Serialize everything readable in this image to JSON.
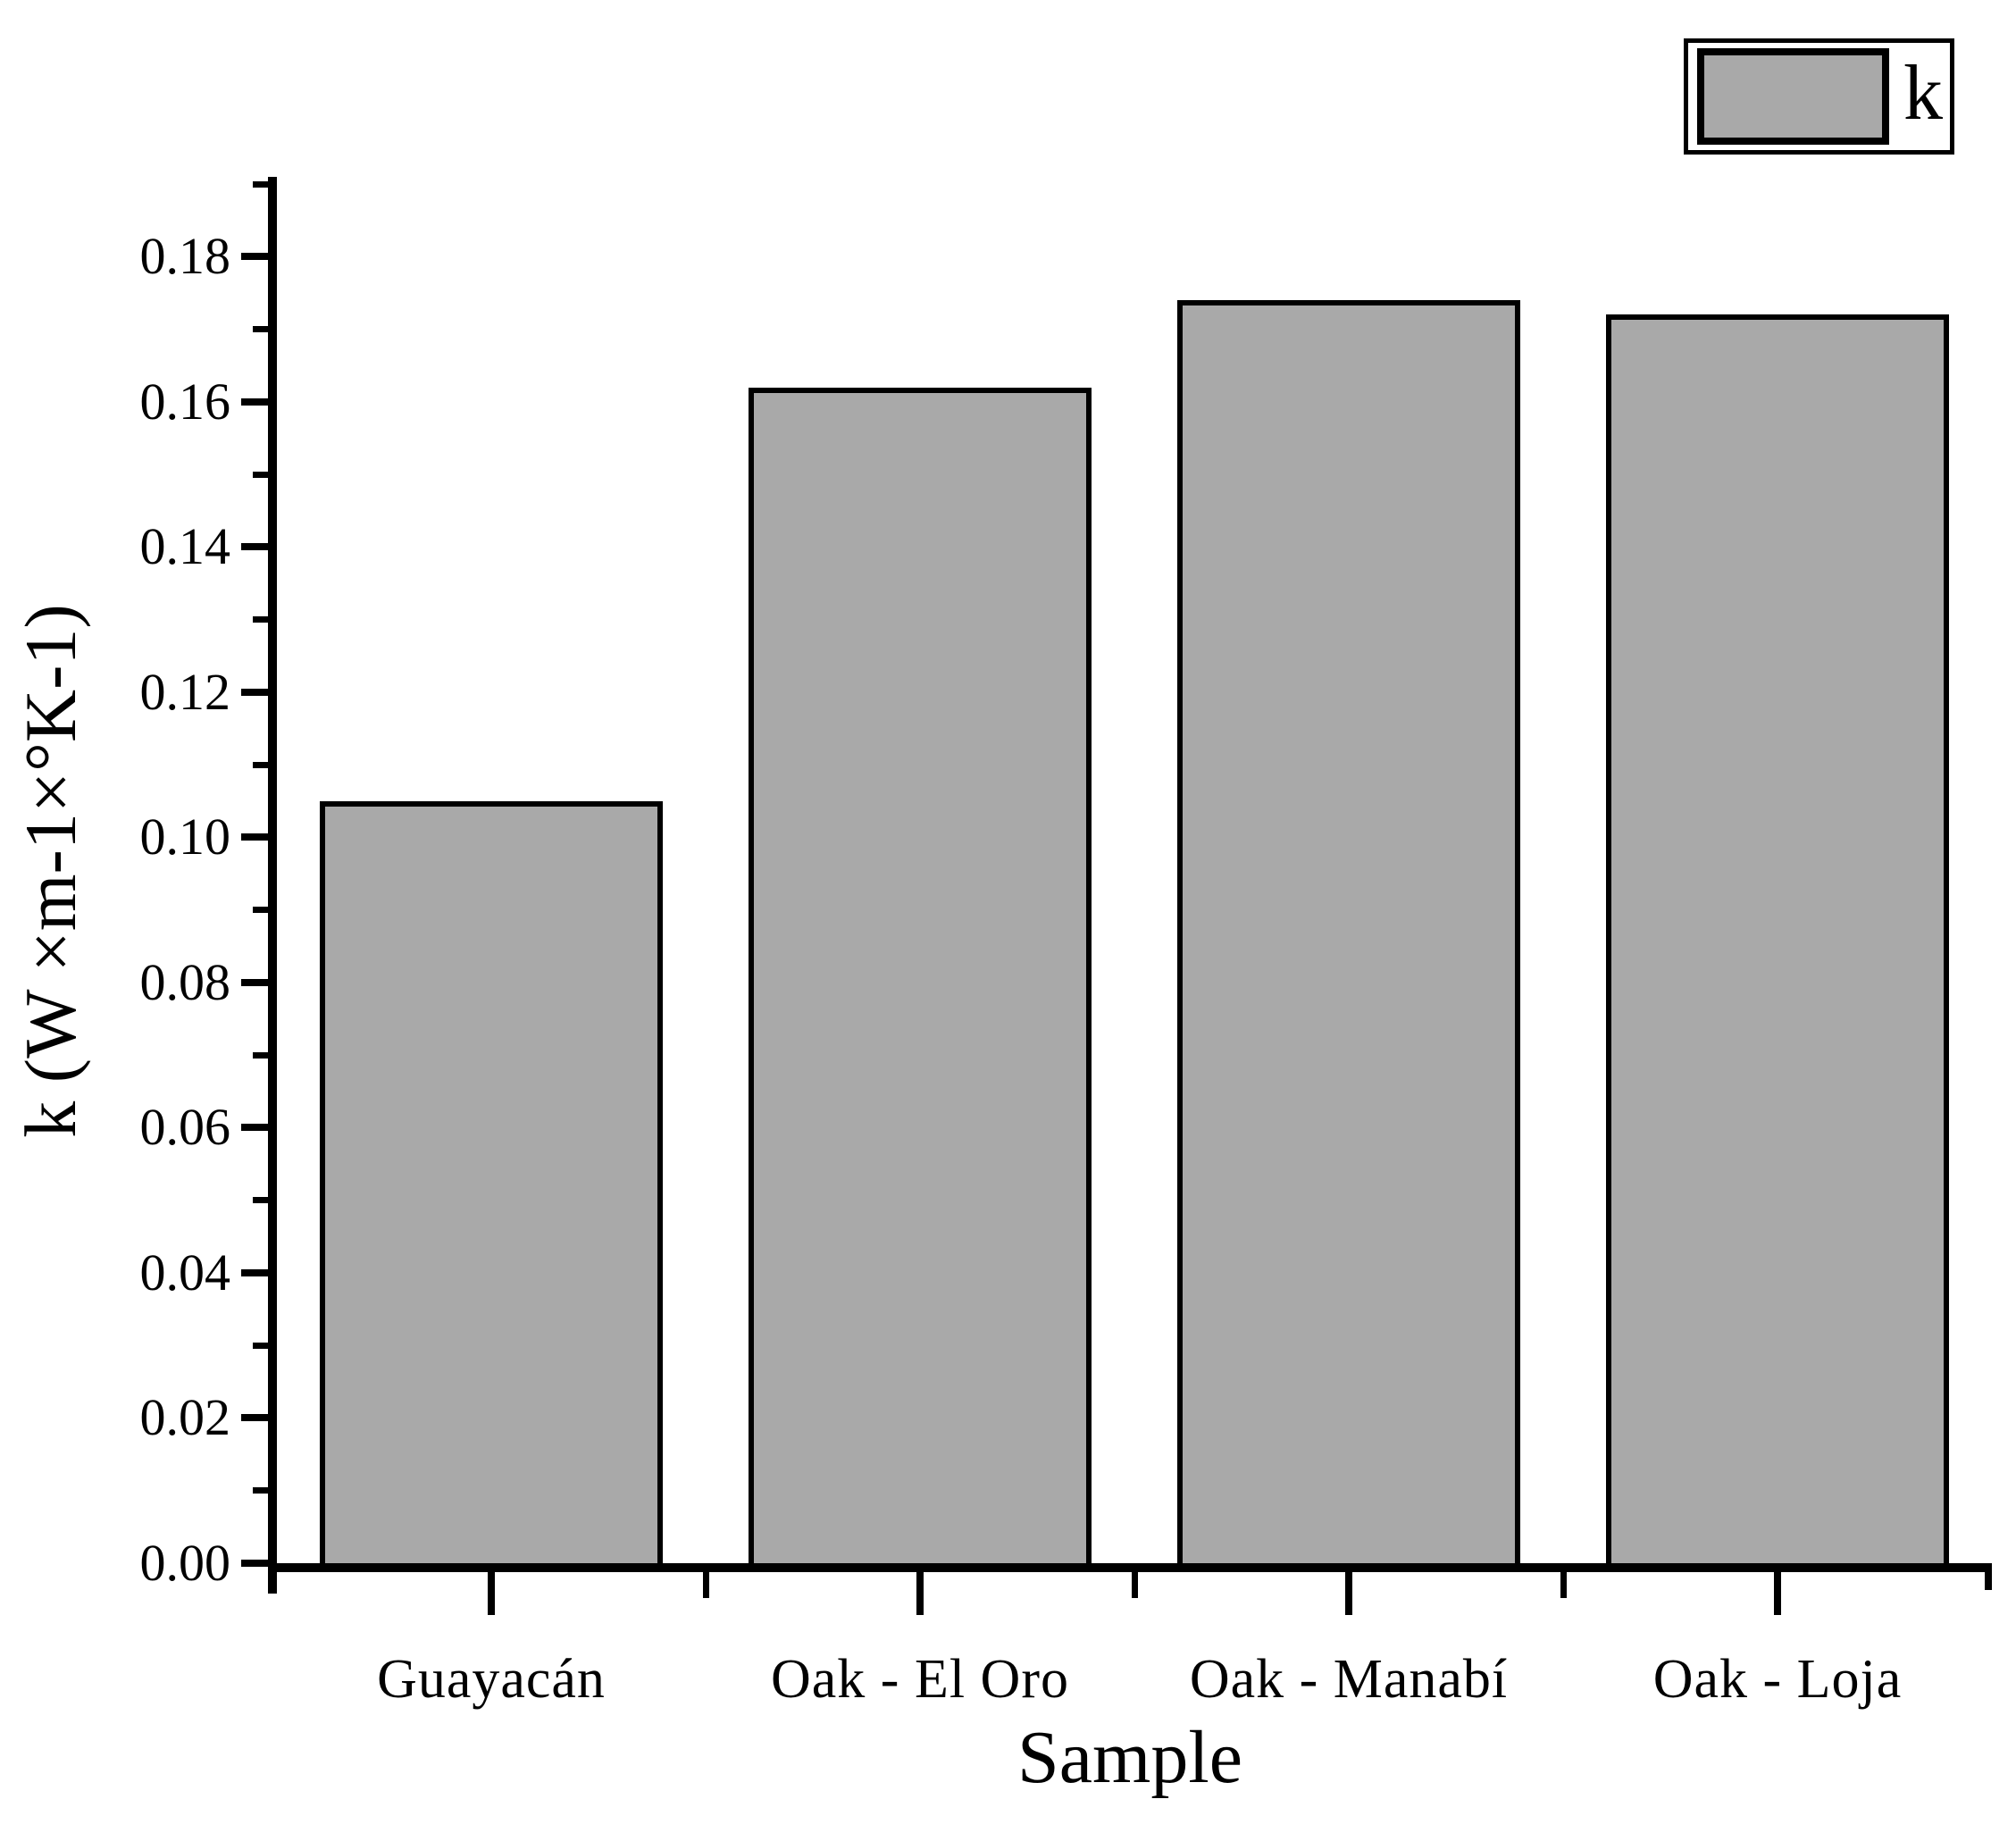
{
  "chart_data": {
    "type": "bar",
    "title": "",
    "categories": [
      "Guayacán",
      "Oak - El Oro",
      "Oak - Manabí",
      "Oak - Loja"
    ],
    "values": [
      0.105,
      0.162,
      0.174,
      0.172
    ],
    "series_name": "k",
    "xlabel": "Sample",
    "ylabel": "k (W ×m-1×°K-1)",
    "ylim": [
      0,
      0.191
    ],
    "y_tick_labels": [
      "0.00",
      "0.02",
      "0.04",
      "0.06",
      "0.08",
      "0.10",
      "0.12",
      "0.14",
      "0.16",
      "0.18"
    ],
    "y_major_step": 0.02,
    "y_minor_step": 0.01,
    "bar_width_fraction": 0.8,
    "grid": false,
    "legend": {
      "label": "k",
      "position": "top-right"
    },
    "colors": {
      "bar_fill": "#a9a9a9",
      "bar_border": "#000000",
      "axis": "#000000",
      "background": "#ffffff"
    }
  }
}
